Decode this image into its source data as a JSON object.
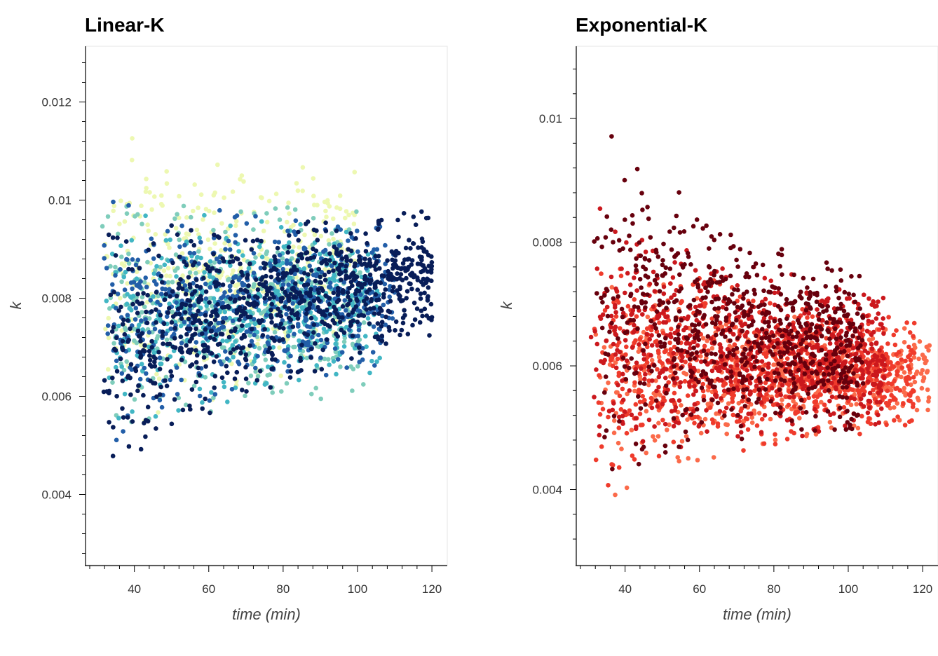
{
  "chart_data": [
    {
      "type": "scatter",
      "title": "Linear-K",
      "xlabel": "time (min)",
      "ylabel": "k",
      "xlim": [
        28,
        123
      ],
      "ylim": [
        0.00265,
        0.01305
      ],
      "xticks": [
        40,
        60,
        80,
        100,
        120
      ],
      "yticks": [
        0.004,
        0.006,
        0.008,
        0.01,
        0.012
      ],
      "xtick_labels": [
        "40",
        "60",
        "80",
        "100",
        "120"
      ],
      "ytick_labels": [
        "0.004",
        "0.006",
        "0.008",
        "0.01",
        "0.012"
      ],
      "grid": false,
      "legend": "none",
      "palette": [
        "#ffffd9",
        "#edf8b1",
        "#c7e9b4",
        "#7fcdbb",
        "#41b6c4",
        "#1d91c0",
        "#225ea8",
        "#253494",
        "#081d58"
      ],
      "series": [
        {
          "x_range": [
            30,
            100
          ],
          "k_start_range": [
            0.0044,
            0.0126
          ],
          "k_end_range": [
            0.0066,
            0.0106
          ],
          "n": 420,
          "color": 1
        },
        {
          "x_range": [
            30,
            102
          ],
          "k_start_range": [
            0.005,
            0.0104
          ],
          "k_end_range": [
            0.006,
            0.0098
          ],
          "n": 420,
          "color": 3
        },
        {
          "x_range": [
            30,
            106
          ],
          "k_start_range": [
            0.0048,
            0.01
          ],
          "k_end_range": [
            0.0064,
            0.0096
          ],
          "n": 480,
          "color": 4
        },
        {
          "x_range": [
            30,
            110
          ],
          "k_start_range": [
            0.0046,
            0.0102
          ],
          "k_end_range": [
            0.0066,
            0.0096
          ],
          "n": 560,
          "color": 6
        },
        {
          "x_range": [
            30,
            120
          ],
          "k_start_range": [
            0.0034,
            0.0092
          ],
          "k_end_range": [
            0.0072,
            0.0098
          ],
          "n": 900,
          "color": 8
        }
      ]
    },
    {
      "type": "scatter",
      "title": "Exponential-K",
      "xlabel": "time (min)",
      "ylabel": "k",
      "xlim": [
        28,
        123
      ],
      "ylim": [
        0.00285,
        0.0111
      ],
      "xticks": [
        40,
        60,
        80,
        100,
        120
      ],
      "yticks": [
        0.004,
        0.006,
        0.008,
        0.01
      ],
      "xtick_labels": [
        "40",
        "60",
        "80",
        "100",
        "120"
      ],
      "ytick_labels": [
        "0.004",
        "0.006",
        "0.008",
        "0.01"
      ],
      "grid": false,
      "legend": "none",
      "palette": [
        "#fee0d2",
        "#fcbba1",
        "#fc9272",
        "#fb6a4a",
        "#ef3b2c",
        "#cb181d",
        "#a50f15",
        "#67000d"
      ],
      "series": [
        {
          "x_range": [
            30,
            122
          ],
          "k_start_range": [
            0.0033,
            0.008
          ],
          "k_end_range": [
            0.0052,
            0.0066
          ],
          "n": 620,
          "color": 3
        },
        {
          "x_range": [
            30,
            118
          ],
          "k_start_range": [
            0.0036,
            0.0084
          ],
          "k_end_range": [
            0.005,
            0.0068
          ],
          "n": 700,
          "color": 4
        },
        {
          "x_range": [
            30,
            110
          ],
          "k_start_range": [
            0.004,
            0.009
          ],
          "k_end_range": [
            0.005,
            0.0072
          ],
          "n": 760,
          "color": 5
        },
        {
          "x_range": [
            30,
            104
          ],
          "k_start_range": [
            0.0038,
            0.0107
          ],
          "k_end_range": [
            0.005,
            0.0075
          ],
          "n": 700,
          "color": 7
        }
      ]
    }
  ]
}
